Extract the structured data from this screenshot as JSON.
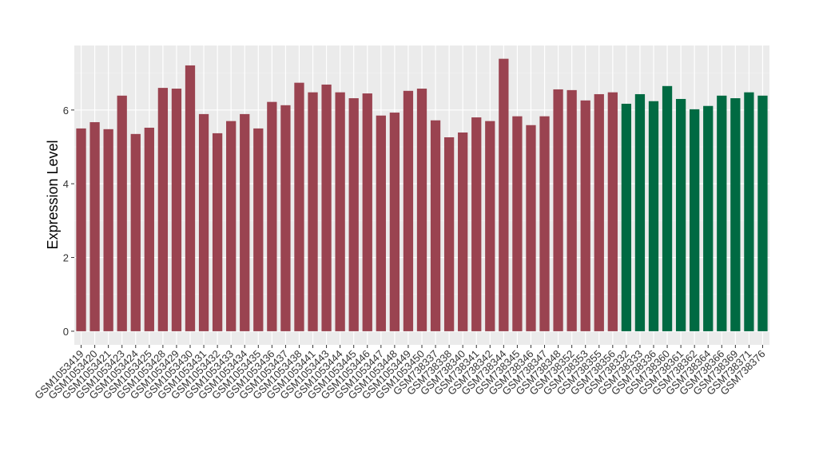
{
  "chart_data": {
    "type": "bar",
    "y_label": "Expression Level",
    "categories": [
      "GSM1053419",
      "GSM1053420",
      "GSM1053421",
      "GSM1053423",
      "GSM1053424",
      "GSM1053425",
      "GSM1053428",
      "GSM1053429",
      "GSM1053430",
      "GSM1053431",
      "GSM1053432",
      "GSM1053433",
      "GSM1053434",
      "GSM1053435",
      "GSM1053436",
      "GSM1053437",
      "GSM1053438",
      "GSM1053441",
      "GSM1053443",
      "GSM1053444",
      "GSM1053445",
      "GSM1053446",
      "GSM1053447",
      "GSM1053448",
      "GSM1053449",
      "GSM1053450",
      "GSM738337",
      "GSM738338",
      "GSM738340",
      "GSM738341",
      "GSM738342",
      "GSM738344",
      "GSM738345",
      "GSM738346",
      "GSM738347",
      "GSM738348",
      "GSM738352",
      "GSM738353",
      "GSM738355",
      "GSM738356",
      "GSM738332",
      "GSM738333",
      "GSM738336",
      "GSM738360",
      "GSM738361",
      "GSM738362",
      "GSM738364",
      "GSM738366",
      "GSM738369",
      "GSM738371",
      "GSM738376"
    ],
    "values": [
      5.5,
      5.67,
      5.48,
      6.39,
      5.35,
      5.52,
      6.6,
      6.58,
      7.21,
      5.89,
      5.37,
      5.7,
      5.89,
      5.5,
      6.22,
      6.13,
      6.74,
      6.48,
      6.69,
      6.48,
      6.32,
      6.45,
      5.85,
      5.93,
      6.52,
      6.58,
      5.72,
      5.26,
      5.39,
      5.8,
      5.7,
      7.39,
      5.83,
      5.59,
      5.83,
      6.56,
      6.54,
      6.26,
      6.43,
      6.48,
      6.17,
      6.43,
      6.24,
      6.65,
      6.3,
      6.02,
      6.11,
      6.39,
      6.32,
      6.48,
      6.39
    ],
    "colors": [
      "#9a4350",
      "#9a4350",
      "#9a4350",
      "#9a4350",
      "#9a4350",
      "#9a4350",
      "#9a4350",
      "#9a4350",
      "#9a4350",
      "#9a4350",
      "#9a4350",
      "#9a4350",
      "#9a4350",
      "#9a4350",
      "#9a4350",
      "#9a4350",
      "#9a4350",
      "#9a4350",
      "#9a4350",
      "#9a4350",
      "#9a4350",
      "#9a4350",
      "#9a4350",
      "#9a4350",
      "#9a4350",
      "#9a4350",
      "#9a4350",
      "#9a4350",
      "#9a4350",
      "#9a4350",
      "#9a4350",
      "#9a4350",
      "#9a4350",
      "#9a4350",
      "#9a4350",
      "#9a4350",
      "#9a4350",
      "#9a4350",
      "#9a4350",
      "#9a4350",
      "#006a42",
      "#006a42",
      "#006a42",
      "#006a42",
      "#006a42",
      "#006a42",
      "#006a42",
      "#006a42",
      "#006a42",
      "#006a42",
      "#006a42"
    ],
    "ylim": [
      -0.37,
      7.75
    ],
    "yticks": [
      0,
      2,
      4,
      6
    ],
    "minor_yticks": [
      1,
      3,
      5,
      7
    ],
    "grid": true
  }
}
